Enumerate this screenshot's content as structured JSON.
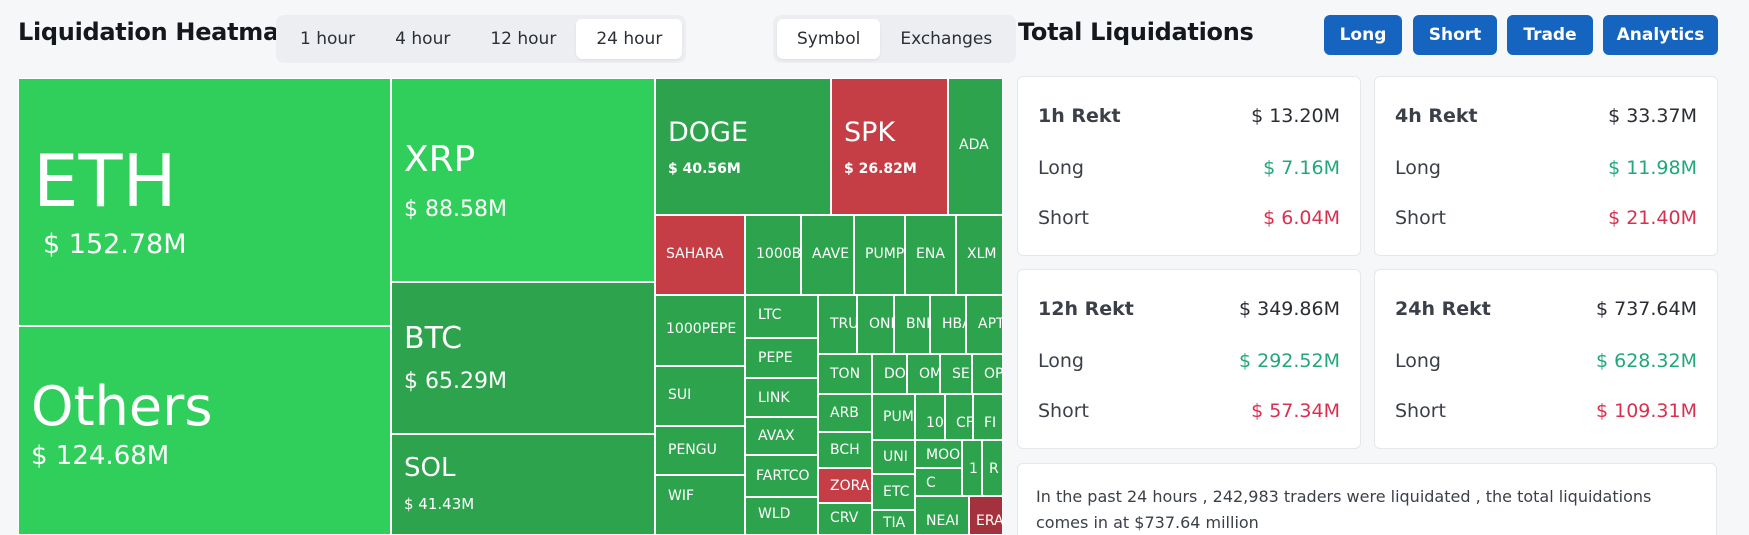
{
  "heatmap": {
    "title": "Liquidation Heatmap",
    "time_options": [
      "1 hour",
      "4 hour",
      "12 hour",
      "24 hour"
    ],
    "time_selected": "24 hour",
    "view_options": [
      "Symbol",
      "Exchanges"
    ],
    "view_selected": "Symbol",
    "tiles": [
      {
        "symbol": "ETH",
        "value": "$ 152.78M"
      },
      {
        "symbol": "Others",
        "value": "$ 124.68M"
      },
      {
        "symbol": "XRP",
        "value": "$ 88.58M"
      },
      {
        "symbol": "BTC",
        "value": "$ 65.29M"
      },
      {
        "symbol": "SOL",
        "value": "$ 41.43M"
      },
      {
        "symbol": "DOGE",
        "value": "$ 40.56M"
      },
      {
        "symbol": "SPK",
        "value": "$ 26.82M"
      },
      {
        "symbol": "ADA"
      },
      {
        "symbol": "SAHARA"
      },
      {
        "symbol": "1000B"
      },
      {
        "symbol": "AAVE"
      },
      {
        "symbol": "PUMP"
      },
      {
        "symbol": "ENA"
      },
      {
        "symbol": "XLM"
      },
      {
        "symbol": "1000PEPE"
      },
      {
        "symbol": "LTC"
      },
      {
        "symbol": "TRU"
      },
      {
        "symbol": "OND"
      },
      {
        "symbol": "BNI"
      },
      {
        "symbol": "HBA"
      },
      {
        "symbol": "APT"
      },
      {
        "symbol": "PEPE"
      },
      {
        "symbol": "TON"
      },
      {
        "symbol": "DO"
      },
      {
        "symbol": "OM"
      },
      {
        "symbol": "SE"
      },
      {
        "symbol": "OP"
      },
      {
        "symbol": "SUI"
      },
      {
        "symbol": "LINK"
      },
      {
        "symbol": "ARB"
      },
      {
        "symbol": "PUM"
      },
      {
        "symbol": "10"
      },
      {
        "symbol": "CF"
      },
      {
        "symbol": "FI"
      },
      {
        "symbol": "AVAX"
      },
      {
        "symbol": "BCH"
      },
      {
        "symbol": "UNI"
      },
      {
        "symbol": "PENGU"
      },
      {
        "symbol": "MOO"
      },
      {
        "symbol": "1"
      },
      {
        "symbol": "R"
      },
      {
        "symbol": "FARTCO"
      },
      {
        "symbol": "ZORA"
      },
      {
        "symbol": "ETC"
      },
      {
        "symbol": "C"
      },
      {
        "symbol": "WIF"
      },
      {
        "symbol": "WLD"
      },
      {
        "symbol": "CRV"
      },
      {
        "symbol": "TIA"
      },
      {
        "symbol": "NEAI"
      },
      {
        "symbol": "ERA"
      }
    ]
  },
  "totals": {
    "title": "Total Liquidations",
    "buttons": [
      "Long",
      "Short",
      "Trade",
      "Analytics"
    ],
    "cards": [
      {
        "label": "1h Rekt",
        "total": "$ 13.20M",
        "long_label": "Long",
        "long": "$ 7.16M",
        "short_label": "Short",
        "short": "$ 6.04M"
      },
      {
        "label": "4h Rekt",
        "total": "$ 33.37M",
        "long_label": "Long",
        "long": "$ 11.98M",
        "short_label": "Short",
        "short": "$ 21.40M"
      },
      {
        "label": "12h Rekt",
        "total": "$ 349.86M",
        "long_label": "Long",
        "long": "$ 292.52M",
        "short_label": "Short",
        "short": "$ 57.34M"
      },
      {
        "label": "24h Rekt",
        "total": "$ 737.64M",
        "long_label": "Long",
        "long": "$ 628.32M",
        "short_label": "Short",
        "short": "$ 109.31M"
      }
    ],
    "summary": "In the past 24 hours , 242,983 traders were liquidated , the total liquidations comes in at $737.64 million"
  },
  "colors": {
    "long": "#21a779",
    "short": "#d9304f",
    "button": "#1565c0",
    "tile_bright": "#30cf5b",
    "tile_mid": "#2ea34d",
    "tile_red": "#c53e45"
  }
}
